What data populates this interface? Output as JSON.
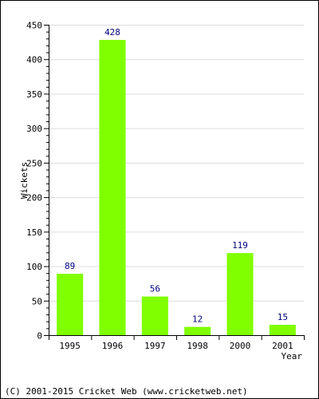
{
  "chart_data": {
    "type": "bar",
    "categories": [
      "1995",
      "1996",
      "1997",
      "1998",
      "2000",
      "2001"
    ],
    "values": [
      89,
      428,
      56,
      12,
      119,
      15
    ],
    "data_labels": [
      "89",
      "428",
      "56",
      "12",
      "119",
      "15"
    ],
    "title": "",
    "xlabel": "Year",
    "ylabel": "Wickets",
    "ylim": [
      0,
      450
    ],
    "yticks": [
      0,
      50,
      100,
      150,
      200,
      250,
      300,
      350,
      400,
      450
    ],
    "ytick_labels": [
      "0",
      "50",
      "100",
      "150",
      "200",
      "250",
      "300",
      "350",
      "400",
      "450"
    ],
    "grid": "horizontal",
    "legend": "none"
  },
  "colors": {
    "bar": "#80ff00",
    "value_label": "#000080",
    "grid": "#dcdcdc",
    "axis": "#000000"
  },
  "footer": {
    "copyright": "(C) 2001-2015 Cricket Web (www.cricketweb.net)"
  }
}
